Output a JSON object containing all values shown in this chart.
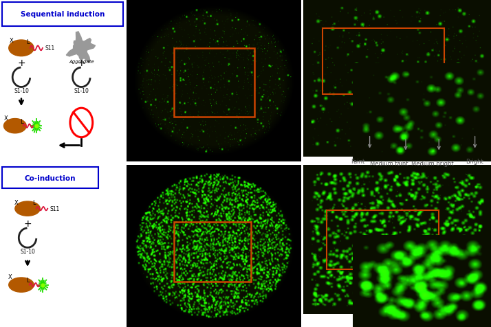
{
  "fig_width": 7.14,
  "fig_height": 4.77,
  "bg_color": "#ffffff",
  "title_seq": "Sequential induction",
  "title_co": "Co-induction",
  "title_color": "#0000cc",
  "rect_color": "#cc4400",
  "label_color": "#555555",
  "annotation_arrow_color": "#888888",
  "labels": [
    "Faint",
    "Medium faint",
    "Medium bright",
    "Bright"
  ]
}
